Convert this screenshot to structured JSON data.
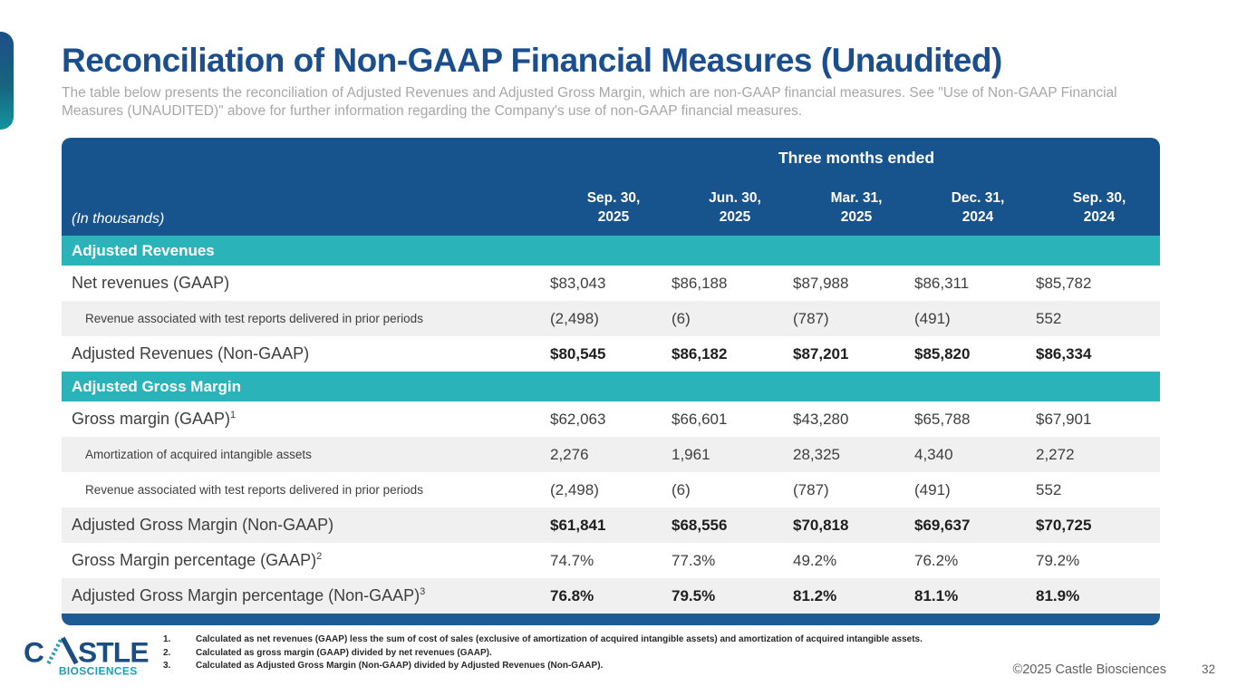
{
  "slide": {
    "title": "Reconciliation of Non-GAAP Financial Measures (Unaudited)",
    "subtitle": "The table below presents the reconciliation of Adjusted Revenues and Adjusted Gross Margin, which are non-GAAP financial measures. See \"Use of Non-GAAP Financial Measures (UNAUDITED)\" above for further information regarding the Company's use of non-GAAP financial measures."
  },
  "table": {
    "units_label": "(In thousands)",
    "span_header": "Three months ended",
    "columns": [
      "Sep. 30,\n2025",
      "Jun. 30,\n2025",
      "Mar. 31,\n2025",
      "Dec. 31,\n2024",
      "Sep. 30,\n2024"
    ],
    "sections": [
      {
        "header": "Adjusted Revenues",
        "rows": [
          {
            "label": "Net revenues (GAAP)",
            "sup": "",
            "style": "normal",
            "shade": "white",
            "values": [
              "$83,043",
              "$86,188",
              "$87,988",
              "$86,311",
              "$85,782"
            ]
          },
          {
            "label": "Revenue associated with test reports delivered in prior periods",
            "sup": "",
            "style": "small",
            "shade": "gray",
            "values": [
              "(2,498)",
              "(6)",
              "(787)",
              "(491)",
              "552"
            ]
          },
          {
            "label": "Adjusted Revenues (Non-GAAP)",
            "sup": "",
            "style": "bold",
            "shade": "white",
            "values": [
              "$80,545",
              "$86,182",
              "$87,201",
              "$85,820",
              "$86,334"
            ]
          }
        ]
      },
      {
        "header": "Adjusted Gross Margin",
        "rows": [
          {
            "label": "Gross margin (GAAP)",
            "sup": "1",
            "style": "normal",
            "shade": "white",
            "values": [
              "$62,063",
              "$66,601",
              "$43,280",
              "$65,788",
              "$67,901"
            ]
          },
          {
            "label": "Amortization of acquired intangible assets",
            "sup": "",
            "style": "small",
            "shade": "gray",
            "values": [
              "2,276",
              "1,961",
              "28,325",
              "4,340",
              "2,272"
            ]
          },
          {
            "label": "Revenue associated with test reports delivered in prior periods",
            "sup": "",
            "style": "small",
            "shade": "white",
            "values": [
              "(2,498)",
              "(6)",
              "(787)",
              "(491)",
              "552"
            ]
          },
          {
            "label": "Adjusted Gross Margin (Non-GAAP)",
            "sup": "",
            "style": "bold",
            "shade": "gray",
            "values": [
              "$61,841",
              "$68,556",
              "$70,818",
              "$69,637",
              "$70,725"
            ]
          },
          {
            "label": "Gross Margin percentage (GAAP)",
            "sup": "2",
            "style": "normal",
            "shade": "white",
            "values": [
              "74.7%",
              "77.3%",
              "49.2%",
              "76.2%",
              "79.2%"
            ]
          },
          {
            "label": "Adjusted Gross Margin percentage (Non-GAAP)",
            "sup": "3",
            "style": "bold",
            "shade": "gray",
            "values": [
              "76.8%",
              "79.5%",
              "81.2%",
              "81.1%",
              "81.9%"
            ]
          }
        ]
      }
    ]
  },
  "footnotes": [
    {
      "num": "1.",
      "text": "Calculated as net revenues (GAAP) less the sum of cost of sales (exclusive of amortization of acquired intangible assets) and amortization of acquired intangible assets."
    },
    {
      "num": "2.",
      "text": "Calculated as gross margin (GAAP) divided by net revenues (GAAP)."
    },
    {
      "num": "3.",
      "text": "Calculated as Adjusted Gross Margin (Non-GAAP) divided by Adjusted Revenues (Non-GAAP)."
    }
  ],
  "logo": {
    "name": "CASTLE",
    "sub": "BIOSCIENCES"
  },
  "footer": {
    "copyright": "©2025 Castle Biosciences",
    "page_number": "32"
  },
  "colors": {
    "title_blue": "#1b4e8c",
    "header_blue": "#17538c",
    "section_teal": "#2ab4b9",
    "bottom_bar_blue": "#1d5b94",
    "row_gray": "#f0f0f0",
    "logo_blue": "#1b4d82",
    "logo_teal": "#189fb5",
    "subtitle_gray": "#a7a7a7"
  }
}
